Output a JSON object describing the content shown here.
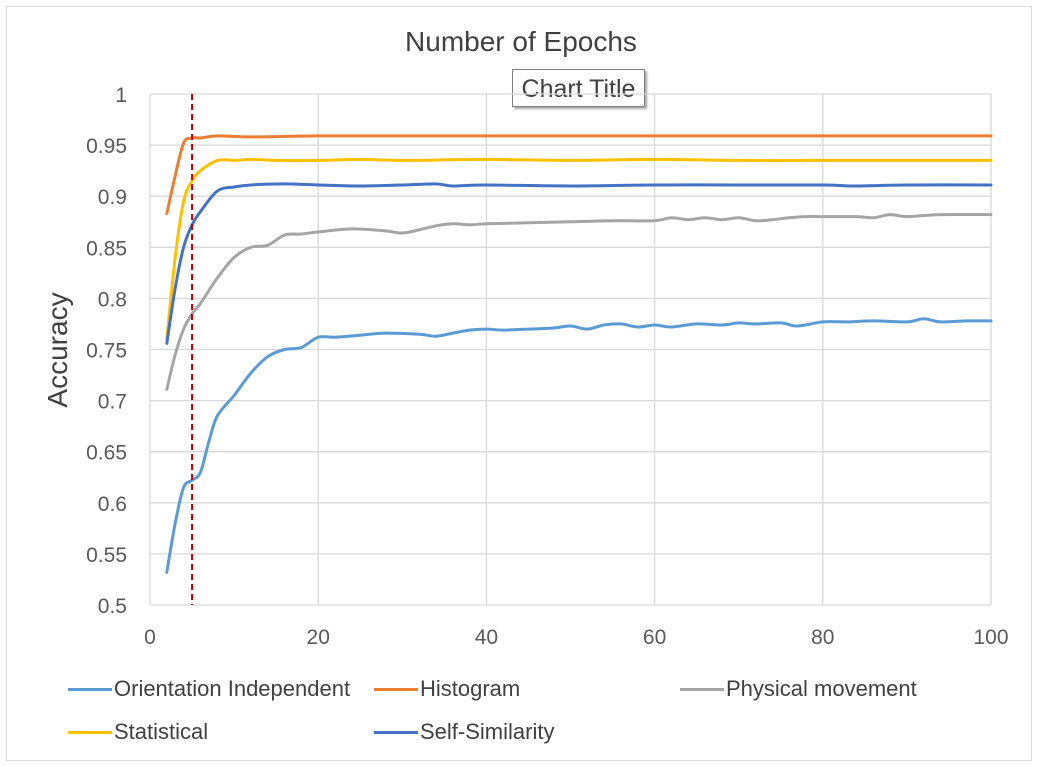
{
  "chart_data": {
    "type": "line",
    "title": "Number of Epochs",
    "overlay_title": "Chart Title",
    "xlabel": "",
    "ylabel": "Accuracy",
    "xlim": [
      0,
      100
    ],
    "ylim": [
      0.5,
      1
    ],
    "x_ticks": [
      "0",
      "20",
      "40",
      "60",
      "80",
      "100"
    ],
    "y_ticks": [
      "0.5",
      "0.55",
      "0.6",
      "0.65",
      "0.7",
      "0.75",
      "0.8",
      "0.85",
      "0.9",
      "0.95",
      "1"
    ],
    "grid": true,
    "marker_line": {
      "x": 5,
      "color": "#c00000",
      "style": "dashed"
    },
    "legend_position": "bottom",
    "series": [
      {
        "name": "Orientation Independent",
        "color": "#5b9bd5",
        "points": [
          [
            2,
            0.532
          ],
          [
            3,
            0.58
          ],
          [
            4,
            0.615
          ],
          [
            5,
            0.622
          ],
          [
            6,
            0.63
          ],
          [
            7,
            0.66
          ],
          [
            8,
            0.685
          ],
          [
            10,
            0.705
          ],
          [
            12,
            0.727
          ],
          [
            14,
            0.743
          ],
          [
            16,
            0.75
          ],
          [
            18,
            0.752
          ],
          [
            20,
            0.762
          ],
          [
            22,
            0.762
          ],
          [
            25,
            0.764
          ],
          [
            28,
            0.766
          ],
          [
            32,
            0.765
          ],
          [
            34,
            0.763
          ],
          [
            36,
            0.766
          ],
          [
            38,
            0.769
          ],
          [
            40,
            0.77
          ],
          [
            42,
            0.769
          ],
          [
            45,
            0.77
          ],
          [
            48,
            0.771
          ],
          [
            50,
            0.773
          ],
          [
            52,
            0.77
          ],
          [
            54,
            0.774
          ],
          [
            56,
            0.775
          ],
          [
            58,
            0.772
          ],
          [
            60,
            0.774
          ],
          [
            62,
            0.772
          ],
          [
            65,
            0.775
          ],
          [
            68,
            0.774
          ],
          [
            70,
            0.776
          ],
          [
            72,
            0.775
          ],
          [
            75,
            0.776
          ],
          [
            77,
            0.773
          ],
          [
            80,
            0.777
          ],
          [
            83,
            0.777
          ],
          [
            86,
            0.778
          ],
          [
            90,
            0.777
          ],
          [
            92,
            0.78
          ],
          [
            94,
            0.777
          ],
          [
            97,
            0.778
          ],
          [
            100,
            0.778
          ]
        ]
      },
      {
        "name": "Histogram",
        "color": "#ed7d31",
        "points": [
          [
            2,
            0.883
          ],
          [
            3,
            0.92
          ],
          [
            4,
            0.952
          ],
          [
            5,
            0.957
          ],
          [
            6,
            0.957
          ],
          [
            8,
            0.959
          ],
          [
            12,
            0.958
          ],
          [
            20,
            0.959
          ],
          [
            30,
            0.959
          ],
          [
            40,
            0.959
          ],
          [
            50,
            0.959
          ],
          [
            60,
            0.959
          ],
          [
            70,
            0.959
          ],
          [
            80,
            0.959
          ],
          [
            90,
            0.959
          ],
          [
            100,
            0.959
          ]
        ]
      },
      {
        "name": "Physical movement",
        "color": "#a5a5a5",
        "points": [
          [
            2,
            0.711
          ],
          [
            3,
            0.745
          ],
          [
            4,
            0.77
          ],
          [
            5,
            0.785
          ],
          [
            6,
            0.795
          ],
          [
            8,
            0.82
          ],
          [
            10,
            0.84
          ],
          [
            12,
            0.85
          ],
          [
            14,
            0.852
          ],
          [
            16,
            0.862
          ],
          [
            18,
            0.863
          ],
          [
            20,
            0.865
          ],
          [
            24,
            0.868
          ],
          [
            28,
            0.866
          ],
          [
            30,
            0.864
          ],
          [
            32,
            0.867
          ],
          [
            34,
            0.871
          ],
          [
            36,
            0.873
          ],
          [
            38,
            0.872
          ],
          [
            40,
            0.873
          ],
          [
            45,
            0.874
          ],
          [
            50,
            0.875
          ],
          [
            55,
            0.876
          ],
          [
            60,
            0.876
          ],
          [
            62,
            0.879
          ],
          [
            64,
            0.877
          ],
          [
            66,
            0.879
          ],
          [
            68,
            0.877
          ],
          [
            70,
            0.879
          ],
          [
            72,
            0.876
          ],
          [
            74,
            0.877
          ],
          [
            76,
            0.879
          ],
          [
            78,
            0.88
          ],
          [
            80,
            0.88
          ],
          [
            84,
            0.88
          ],
          [
            86,
            0.879
          ],
          [
            88,
            0.882
          ],
          [
            90,
            0.88
          ],
          [
            94,
            0.882
          ],
          [
            100,
            0.882
          ]
        ]
      },
      {
        "name": "Statistical",
        "color": "#ffc000",
        "points": [
          [
            2,
            0.76
          ],
          [
            3,
            0.84
          ],
          [
            4,
            0.895
          ],
          [
            5,
            0.915
          ],
          [
            6,
            0.925
          ],
          [
            8,
            0.935
          ],
          [
            10,
            0.935
          ],
          [
            12,
            0.936
          ],
          [
            15,
            0.935
          ],
          [
            20,
            0.935
          ],
          [
            25,
            0.936
          ],
          [
            30,
            0.935
          ],
          [
            40,
            0.936
          ],
          [
            50,
            0.935
          ],
          [
            60,
            0.936
          ],
          [
            70,
            0.935
          ],
          [
            80,
            0.935
          ],
          [
            90,
            0.935
          ],
          [
            100,
            0.935
          ]
        ]
      },
      {
        "name": "Self-Similarity",
        "color": "#4472c4",
        "points": [
          [
            2,
            0.756
          ],
          [
            3,
            0.81
          ],
          [
            4,
            0.85
          ],
          [
            5,
            0.872
          ],
          [
            6,
            0.885
          ],
          [
            8,
            0.905
          ],
          [
            10,
            0.909
          ],
          [
            12,
            0.911
          ],
          [
            16,
            0.912
          ],
          [
            20,
            0.911
          ],
          [
            25,
            0.91
          ],
          [
            30,
            0.911
          ],
          [
            34,
            0.912
          ],
          [
            36,
            0.91
          ],
          [
            40,
            0.911
          ],
          [
            50,
            0.91
          ],
          [
            60,
            0.911
          ],
          [
            70,
            0.911
          ],
          [
            80,
            0.911
          ],
          [
            84,
            0.91
          ],
          [
            90,
            0.911
          ],
          [
            100,
            0.911
          ]
        ]
      }
    ]
  }
}
